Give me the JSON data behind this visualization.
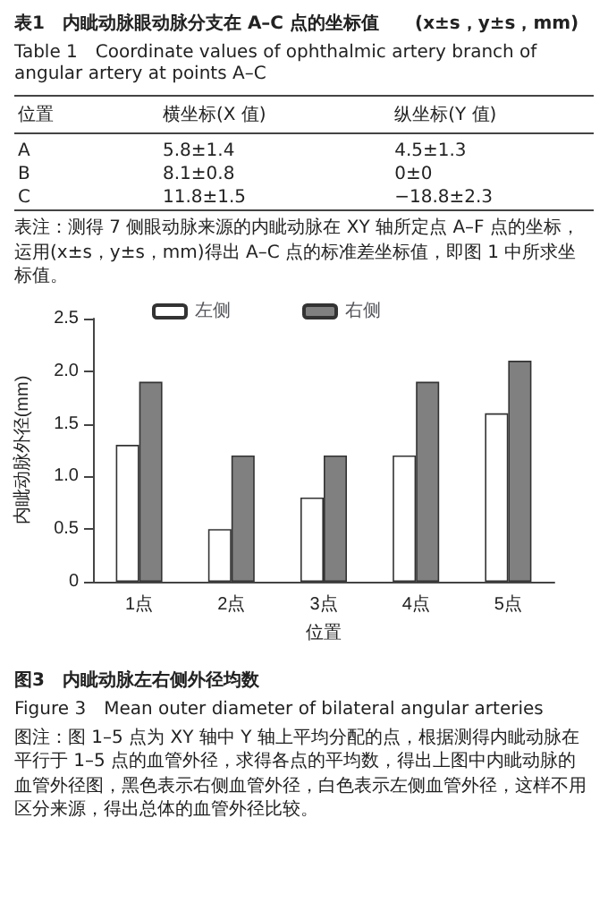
{
  "chart_data": [
    {
      "type": "other",
      "title": "表1　内眦动脉眼动脉分支在 A–C 点的坐标值　　(x±s，y±s，mm)",
      "subtitle": "Table 1　Coordinate values of ophthalmic artery branch of angular artery at points A–C",
      "annotations": [
        "位置",
        "横坐标(X 值)",
        "纵坐标(Y 值)",
        "A",
        "5.8±1.4",
        "4.5±1.3",
        "B",
        "8.1±0.8",
        "0±0",
        "C",
        "11.8±1.5",
        "−18.8±2.3",
        "表注：测得 7 侧眼动脉来源的内眦动脉在 XY 轴所定点 A–F 点的坐标，运用(x±s，y±s，mm)得出 A–C 点的标准差坐标值，即图 1 中所求坐标值。"
      ]
    },
    {
      "type": "bar",
      "title": "图3　内眦动脉左右侧外径均数",
      "subtitle": "Figure 3　Mean outer diameter of bilateral angular arteries",
      "xlabel": "位置",
      "ylabel": "内眦动脉外径(mm)",
      "categories": [
        "1点",
        "2点",
        "3点",
        "4点",
        "5点"
      ],
      "series": [
        {
          "name": "左侧",
          "color": "#ffffff",
          "values": [
            1.3,
            0.5,
            0.8,
            1.2,
            1.6
          ]
        },
        {
          "name": "右侧",
          "color": "#808080",
          "values": [
            1.9,
            1.2,
            1.2,
            1.9,
            2.1
          ]
        }
      ],
      "ylim": [
        0,
        2.5
      ],
      "yticks": [
        0,
        0.5,
        {
          "value": 1,
          "label": "1.0"
        },
        1.5,
        {
          "value": 2,
          "label": "2.0"
        },
        2.5
      ],
      "legend": "top",
      "grid": false,
      "annotations": [
        "图注：图 1–5 点为 XY 轴中 Y 轴上平均分配的点，根据测得内眦动脉在平行于 1–5 点的血管外径，求得各点的平均数，得出上图中内眦动脉的血管外径图，黑色表示右侧血管外径，白色表示左侧血管外径，这样不用区分来源，得出总体的血管外径比较。"
      ]
    }
  ]
}
